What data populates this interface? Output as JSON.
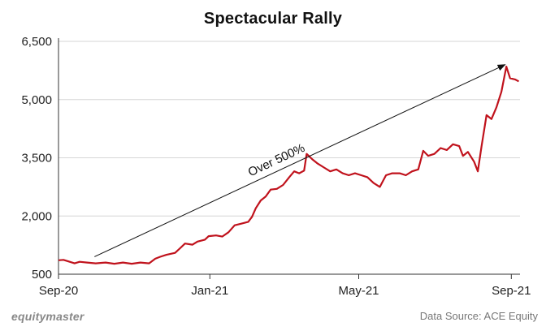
{
  "chart_data": {
    "type": "line",
    "title": "Spectacular Rally",
    "xlabel": "",
    "ylabel": "",
    "ylim": [
      500,
      6500
    ],
    "yticks": [
      500,
      2000,
      3500,
      5000,
      6500
    ],
    "ytick_labels": [
      "500",
      "2,000",
      "3,500",
      "5,000",
      "6,500"
    ],
    "xticks": [
      {
        "label": "Sep-20",
        "date": "2020-09-01"
      },
      {
        "label": "Jan-21",
        "date": "2021-01-01"
      },
      {
        "label": "May-21",
        "date": "2021-05-01"
      },
      {
        "label": "Sep-21",
        "date": "2021-09-01"
      }
    ],
    "x_range": [
      "2020-09-01",
      "2021-09-08"
    ],
    "grid": {
      "horizontal": true,
      "vertical": false
    },
    "series": [
      {
        "color": "#c0121c",
        "points": [
          [
            "2020-09-01",
            860
          ],
          [
            "2020-09-05",
            870
          ],
          [
            "2020-09-09",
            830
          ],
          [
            "2020-09-14",
            780
          ],
          [
            "2020-09-18",
            820
          ],
          [
            "2020-09-24",
            800
          ],
          [
            "2020-10-01",
            780
          ],
          [
            "2020-10-09",
            800
          ],
          [
            "2020-10-16",
            770
          ],
          [
            "2020-10-23",
            800
          ],
          [
            "2020-10-30",
            770
          ],
          [
            "2020-11-06",
            800
          ],
          [
            "2020-11-13",
            780
          ],
          [
            "2020-11-18",
            900
          ],
          [
            "2020-11-22",
            950
          ],
          [
            "2020-11-27",
            1000
          ],
          [
            "2020-12-04",
            1050
          ],
          [
            "2020-12-08",
            1170
          ],
          [
            "2020-12-12",
            1290
          ],
          [
            "2020-12-18",
            1260
          ],
          [
            "2020-12-22",
            1340
          ],
          [
            "2020-12-28",
            1390
          ],
          [
            "2020-12-31",
            1480
          ],
          [
            "2021-01-06",
            1500
          ],
          [
            "2021-01-11",
            1470
          ],
          [
            "2021-01-16",
            1580
          ],
          [
            "2021-01-21",
            1760
          ],
          [
            "2021-01-26",
            1800
          ],
          [
            "2021-02-01",
            1850
          ],
          [
            "2021-02-04",
            1980
          ],
          [
            "2021-02-07",
            2200
          ],
          [
            "2021-02-11",
            2400
          ],
          [
            "2021-02-15",
            2500
          ],
          [
            "2021-02-19",
            2680
          ],
          [
            "2021-02-24",
            2700
          ],
          [
            "2021-03-01",
            2800
          ],
          [
            "2021-03-06",
            3000
          ],
          [
            "2021-03-10",
            3150
          ],
          [
            "2021-03-14",
            3100
          ],
          [
            "2021-03-18",
            3170
          ],
          [
            "2021-03-20",
            3600
          ],
          [
            "2021-03-25",
            3450
          ],
          [
            "2021-03-29",
            3350
          ],
          [
            "2021-04-03",
            3250
          ],
          [
            "2021-04-08",
            3150
          ],
          [
            "2021-04-13",
            3200
          ],
          [
            "2021-04-18",
            3100
          ],
          [
            "2021-04-23",
            3050
          ],
          [
            "2021-04-28",
            3100
          ],
          [
            "2021-05-03",
            3050
          ],
          [
            "2021-05-08",
            3000
          ],
          [
            "2021-05-13",
            2850
          ],
          [
            "2021-05-18",
            2750
          ],
          [
            "2021-05-23",
            3050
          ],
          [
            "2021-05-28",
            3100
          ],
          [
            "2021-06-03",
            3100
          ],
          [
            "2021-06-08",
            3050
          ],
          [
            "2021-06-13",
            3150
          ],
          [
            "2021-06-18",
            3200
          ],
          [
            "2021-06-22",
            3680
          ],
          [
            "2021-06-26",
            3550
          ],
          [
            "2021-07-01",
            3600
          ],
          [
            "2021-07-06",
            3750
          ],
          [
            "2021-07-11",
            3700
          ],
          [
            "2021-07-16",
            3850
          ],
          [
            "2021-07-21",
            3800
          ],
          [
            "2021-07-24",
            3550
          ],
          [
            "2021-07-28",
            3650
          ],
          [
            "2021-08-02",
            3400
          ],
          [
            "2021-08-05",
            3150
          ],
          [
            "2021-08-08",
            3800
          ],
          [
            "2021-08-12",
            4600
          ],
          [
            "2021-08-16",
            4500
          ],
          [
            "2021-08-20",
            4800
          ],
          [
            "2021-08-24",
            5200
          ],
          [
            "2021-08-28",
            5850
          ],
          [
            "2021-08-31",
            5550
          ],
          [
            "2021-09-04",
            5520
          ],
          [
            "2021-09-07",
            5470
          ]
        ]
      }
    ],
    "annotations": [
      {
        "text": "Over 500%",
        "arrow_from": {
          "date": "2020-09-30",
          "value": 950
        },
        "arrow_to": {
          "date": "2021-08-27",
          "value": 5900
        },
        "label_at": {
          "date": "2021-02-25",
          "value": 3350
        }
      }
    ]
  },
  "footer": {
    "brand": "equitymaster",
    "source": "Data Source: ACE Equity"
  }
}
